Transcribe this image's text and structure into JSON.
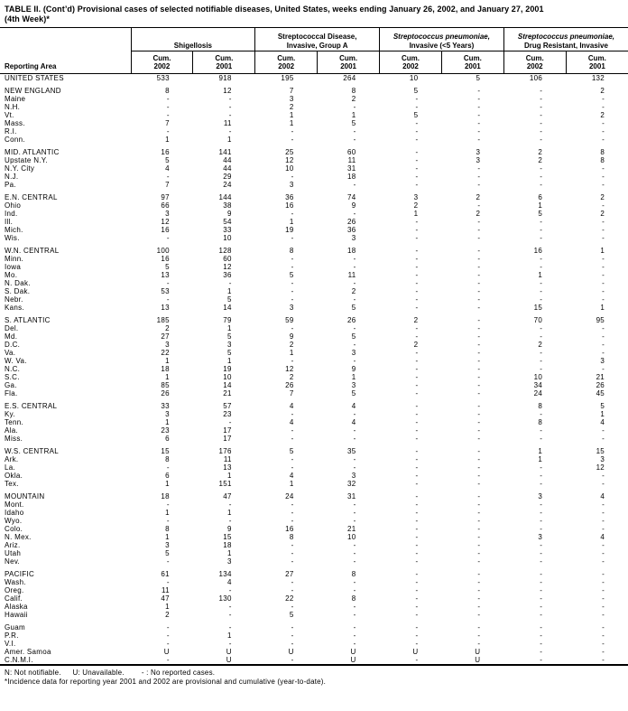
{
  "title_line1": "TABLE II. (Cont’d) Provisional cases of selected notifiable diseases, United States, weeks ending January 26, 2002, and January 27, 2001",
  "title_line2": "(4th Week)*",
  "table": {
    "reporting_area_label": "Reporting Area",
    "groups": [
      {
        "line1": "Shigellosis",
        "line2": ""
      },
      {
        "line1": "Streptococcal Disease,",
        "line2": "Invasive, Group A"
      },
      {
        "line1": "Streptococcus pneumoniae,",
        "line2": "Invasive (<5 Years)"
      },
      {
        "line1": "Streptococcus pneumoniae,",
        "line2": "Drug Resistant, Invasive"
      }
    ],
    "subcols": [
      {
        "l1": "Cum.",
        "l2": "2002"
      },
      {
        "l1": "Cum.",
        "l2": "2001"
      },
      {
        "l1": "Cum.",
        "l2": "2002"
      },
      {
        "l1": "Cum.",
        "l2": "2001"
      },
      {
        "l1": "Cum.",
        "l2": "2002"
      },
      {
        "l1": "Cum.",
        "l2": "2001"
      },
      {
        "l1": "Cum.",
        "l2": "2002"
      },
      {
        "l1": "Cum.",
        "l2": "2001"
      }
    ],
    "sections": [
      {
        "rows": [
          [
            "UNITED STATES",
            "533",
            "918",
            "195",
            "264",
            "10",
            "5",
            "106",
            "132"
          ]
        ]
      },
      {
        "rows": [
          [
            "NEW ENGLAND",
            "8",
            "12",
            "7",
            "8",
            "5",
            "-",
            "-",
            "2"
          ],
          [
            "Maine",
            "-",
            "-",
            "3",
            "2",
            "-",
            "-",
            "-",
            "-"
          ],
          [
            "N.H.",
            "-",
            "-",
            "2",
            "-",
            "-",
            "-",
            "-",
            "-"
          ],
          [
            "Vt.",
            "-",
            "-",
            "1",
            "1",
            "5",
            "-",
            "-",
            "2"
          ],
          [
            "Mass.",
            "7",
            "11",
            "1",
            "5",
            "-",
            "-",
            "-",
            "-"
          ],
          [
            "R.I.",
            "-",
            "-",
            "-",
            "-",
            "-",
            "-",
            "-",
            "-"
          ],
          [
            "Conn.",
            "1",
            "1",
            "-",
            "-",
            "-",
            "-",
            "-",
            "-"
          ]
        ]
      },
      {
        "rows": [
          [
            "MID. ATLANTIC",
            "16",
            "141",
            "25",
            "60",
            "-",
            "3",
            "2",
            "8"
          ],
          [
            "Upstate N.Y.",
            "5",
            "44",
            "12",
            "11",
            "-",
            "3",
            "2",
            "8"
          ],
          [
            "N.Y. City",
            "4",
            "44",
            "10",
            "31",
            "-",
            "-",
            "-",
            "-"
          ],
          [
            "N.J.",
            "-",
            "29",
            "-",
            "18",
            "-",
            "-",
            "-",
            "-"
          ],
          [
            "Pa.",
            "7",
            "24",
            "3",
            "-",
            "-",
            "-",
            "-",
            "-"
          ]
        ]
      },
      {
        "rows": [
          [
            "E.N. CENTRAL",
            "97",
            "144",
            "36",
            "74",
            "3",
            "2",
            "6",
            "2"
          ],
          [
            "Ohio",
            "66",
            "38",
            "16",
            "9",
            "2",
            "-",
            "1",
            "-"
          ],
          [
            "Ind.",
            "3",
            "9",
            "-",
            "-",
            "1",
            "2",
            "5",
            "2"
          ],
          [
            "Ill.",
            "12",
            "54",
            "1",
            "26",
            "-",
            "-",
            "-",
            "-"
          ],
          [
            "Mich.",
            "16",
            "33",
            "19",
            "36",
            "-",
            "-",
            "-",
            "-"
          ],
          [
            "Wis.",
            "-",
            "10",
            "-",
            "3",
            "-",
            "-",
            "-",
            "-"
          ]
        ]
      },
      {
        "rows": [
          [
            "W.N. CENTRAL",
            "100",
            "128",
            "8",
            "18",
            "-",
            "-",
            "16",
            "1"
          ],
          [
            "Minn.",
            "16",
            "60",
            "-",
            "-",
            "-",
            "-",
            "-",
            "-"
          ],
          [
            "Iowa",
            "5",
            "12",
            "-",
            "-",
            "-",
            "-",
            "-",
            "-"
          ],
          [
            "Mo.",
            "13",
            "36",
            "5",
            "11",
            "-",
            "-",
            "1",
            "-"
          ],
          [
            "N. Dak.",
            "-",
            "-",
            "-",
            "-",
            "-",
            "-",
            "-",
            "-"
          ],
          [
            "S. Dak.",
            "53",
            "1",
            "-",
            "2",
            "-",
            "-",
            "-",
            "-"
          ],
          [
            "Nebr.",
            "-",
            "5",
            "-",
            "-",
            "-",
            "-",
            "-",
            "-"
          ],
          [
            "Kans.",
            "13",
            "14",
            "3",
            "5",
            "-",
            "-",
            "15",
            "1"
          ]
        ]
      },
      {
        "rows": [
          [
            "S. ATLANTIC",
            "185",
            "79",
            "59",
            "26",
            "2",
            "-",
            "70",
            "95"
          ],
          [
            "Del.",
            "2",
            "1",
            "-",
            "-",
            "-",
            "-",
            "-",
            "-"
          ],
          [
            "Md.",
            "27",
            "5",
            "9",
            "5",
            "-",
            "-",
            "-",
            "-"
          ],
          [
            "D.C.",
            "3",
            "3",
            "2",
            "-",
            "2",
            "-",
            "2",
            "-"
          ],
          [
            "Va.",
            "22",
            "5",
            "1",
            "3",
            "-",
            "-",
            "-",
            "-"
          ],
          [
            "W. Va.",
            "1",
            "1",
            "-",
            "-",
            "-",
            "-",
            "-",
            "3"
          ],
          [
            "N.C.",
            "18",
            "19",
            "12",
            "9",
            "-",
            "-",
            "-",
            "-"
          ],
          [
            "S.C.",
            "1",
            "10",
            "2",
            "1",
            "-",
            "-",
            "10",
            "21"
          ],
          [
            "Ga.",
            "85",
            "14",
            "26",
            "3",
            "-",
            "-",
            "34",
            "26"
          ],
          [
            "Fla.",
            "26",
            "21",
            "7",
            "5",
            "-",
            "-",
            "24",
            "45"
          ]
        ]
      },
      {
        "rows": [
          [
            "E.S. CENTRAL",
            "33",
            "57",
            "4",
            "4",
            "-",
            "-",
            "8",
            "5"
          ],
          [
            "Ky.",
            "3",
            "23",
            "-",
            "-",
            "-",
            "-",
            "-",
            "1"
          ],
          [
            "Tenn.",
            "1",
            "-",
            "4",
            "4",
            "-",
            "-",
            "8",
            "4"
          ],
          [
            "Ala.",
            "23",
            "17",
            "-",
            "-",
            "-",
            "-",
            "-",
            "-"
          ],
          [
            "Miss.",
            "6",
            "17",
            "-",
            "-",
            "-",
            "-",
            "-",
            "-"
          ]
        ]
      },
      {
        "rows": [
          [
            "W.S. CENTRAL",
            "15",
            "176",
            "5",
            "35",
            "-",
            "-",
            "1",
            "15"
          ],
          [
            "Ark.",
            "8",
            "11",
            "-",
            "-",
            "-",
            "-",
            "1",
            "3"
          ],
          [
            "La.",
            "-",
            "13",
            "-",
            "-",
            "-",
            "-",
            "-",
            "12"
          ],
          [
            "Okla.",
            "6",
            "1",
            "4",
            "3",
            "-",
            "-",
            "-",
            "-"
          ],
          [
            "Tex.",
            "1",
            "151",
            "1",
            "32",
            "-",
            "-",
            "-",
            "-"
          ]
        ]
      },
      {
        "rows": [
          [
            "MOUNTAIN",
            "18",
            "47",
            "24",
            "31",
            "-",
            "-",
            "3",
            "4"
          ],
          [
            "Mont.",
            "-",
            "-",
            "-",
            "-",
            "-",
            "-",
            "-",
            "-"
          ],
          [
            "Idaho",
            "1",
            "1",
            "-",
            "-",
            "-",
            "-",
            "-",
            "-"
          ],
          [
            "Wyo.",
            "-",
            "-",
            "-",
            "-",
            "-",
            "-",
            "-",
            "-"
          ],
          [
            "Colo.",
            "8",
            "9",
            "16",
            "21",
            "-",
            "-",
            "-",
            "-"
          ],
          [
            "N. Mex.",
            "1",
            "15",
            "8",
            "10",
            "-",
            "-",
            "3",
            "4"
          ],
          [
            "Ariz.",
            "3",
            "18",
            "-",
            "-",
            "-",
            "-",
            "-",
            "-"
          ],
          [
            "Utah",
            "5",
            "1",
            "-",
            "-",
            "-",
            "-",
            "-",
            "-"
          ],
          [
            "Nev.",
            "-",
            "3",
            "-",
            "-",
            "-",
            "-",
            "-",
            "-"
          ]
        ]
      },
      {
        "rows": [
          [
            "PACIFIC",
            "61",
            "134",
            "27",
            "8",
            "-",
            "-",
            "-",
            "-"
          ],
          [
            "Wash.",
            "-",
            "4",
            "-",
            "-",
            "-",
            "-",
            "-",
            "-"
          ],
          [
            "Oreg.",
            "11",
            "-",
            "-",
            "-",
            "-",
            "-",
            "-",
            "-"
          ],
          [
            "Calif.",
            "47",
            "130",
            "22",
            "8",
            "-",
            "-",
            "-",
            "-"
          ],
          [
            "Alaska",
            "1",
            "-",
            "-",
            "-",
            "-",
            "-",
            "-",
            "-"
          ],
          [
            "Hawaii",
            "2",
            "-",
            "5",
            "-",
            "-",
            "-",
            "-",
            "-"
          ]
        ]
      },
      {
        "rows": [
          [
            "Guam",
            "-",
            "-",
            "-",
            "-",
            "-",
            "-",
            "-",
            "-"
          ],
          [
            "P.R.",
            "-",
            "1",
            "-",
            "-",
            "-",
            "-",
            "-",
            "-"
          ],
          [
            "V.I.",
            "-",
            "-",
            "-",
            "-",
            "-",
            "-",
            "-",
            "-"
          ],
          [
            "Amer. Samoa",
            "U",
            "U",
            "U",
            "U",
            "U",
            "U",
            "-",
            "-"
          ],
          [
            "C.N.M.I.",
            "-",
            "U",
            "-",
            "U",
            "-",
            "U",
            "-",
            "-"
          ]
        ]
      }
    ]
  },
  "footnotes": {
    "seg1": "N: Not notifiable.",
    "seg2": "U: Unavailable.",
    "seg3": "- : No reported cases.",
    "line2": "*Incidence data for reporting year 2001 and 2002 are provisional and cumulative (year-to-date)."
  }
}
